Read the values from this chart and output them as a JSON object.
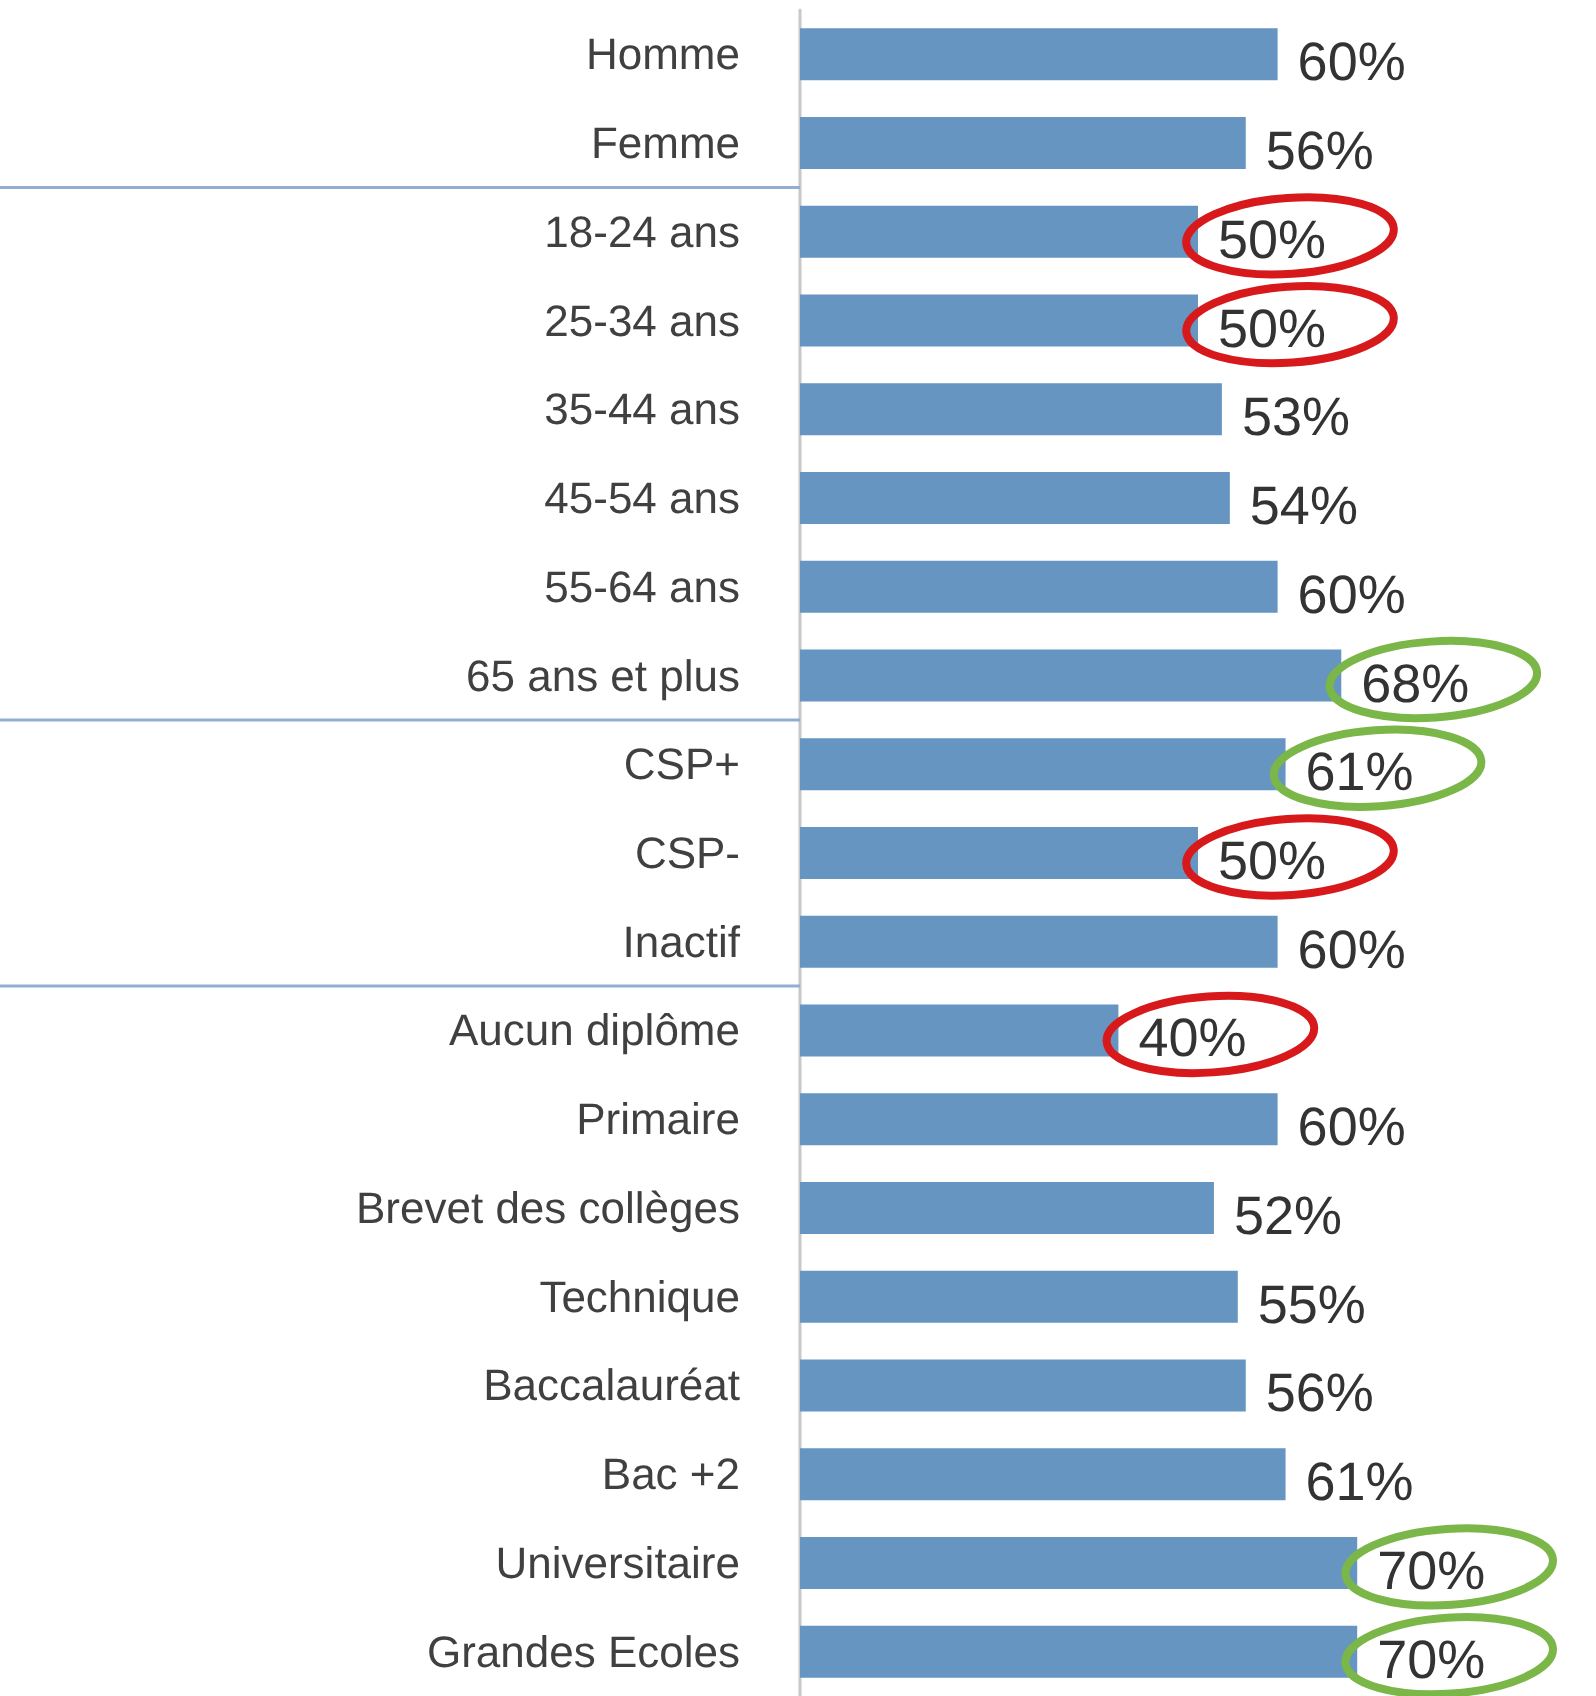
{
  "chart_data": {
    "type": "bar",
    "orientation": "horizontal",
    "categories": [
      "Homme",
      "Femme",
      "18-24 ans",
      "25-34 ans",
      "35-44 ans",
      "45-54 ans",
      "55-64 ans",
      "65 ans et plus",
      "CSP+",
      "CSP-",
      "Inactif",
      "Aucun diplôme",
      "Primaire",
      "Brevet des collèges",
      "Technique",
      "Baccalauréat",
      "Bac +2",
      "Universitaire",
      "Grandes Ecoles"
    ],
    "values": [
      60,
      56,
      50,
      50,
      53,
      54,
      60,
      68,
      61,
      50,
      60,
      40,
      60,
      52,
      55,
      56,
      61,
      70,
      70
    ],
    "value_labels": [
      "60%",
      "56%",
      "50%",
      "50%",
      "53%",
      "54%",
      "60%",
      "68%",
      "61%",
      "50%",
      "60%",
      "40%",
      "60%",
      "52%",
      "55%",
      "56%",
      "61%",
      "70%",
      "70%"
    ],
    "color": "#6595c0",
    "tick_labels": "y"
  }
}
